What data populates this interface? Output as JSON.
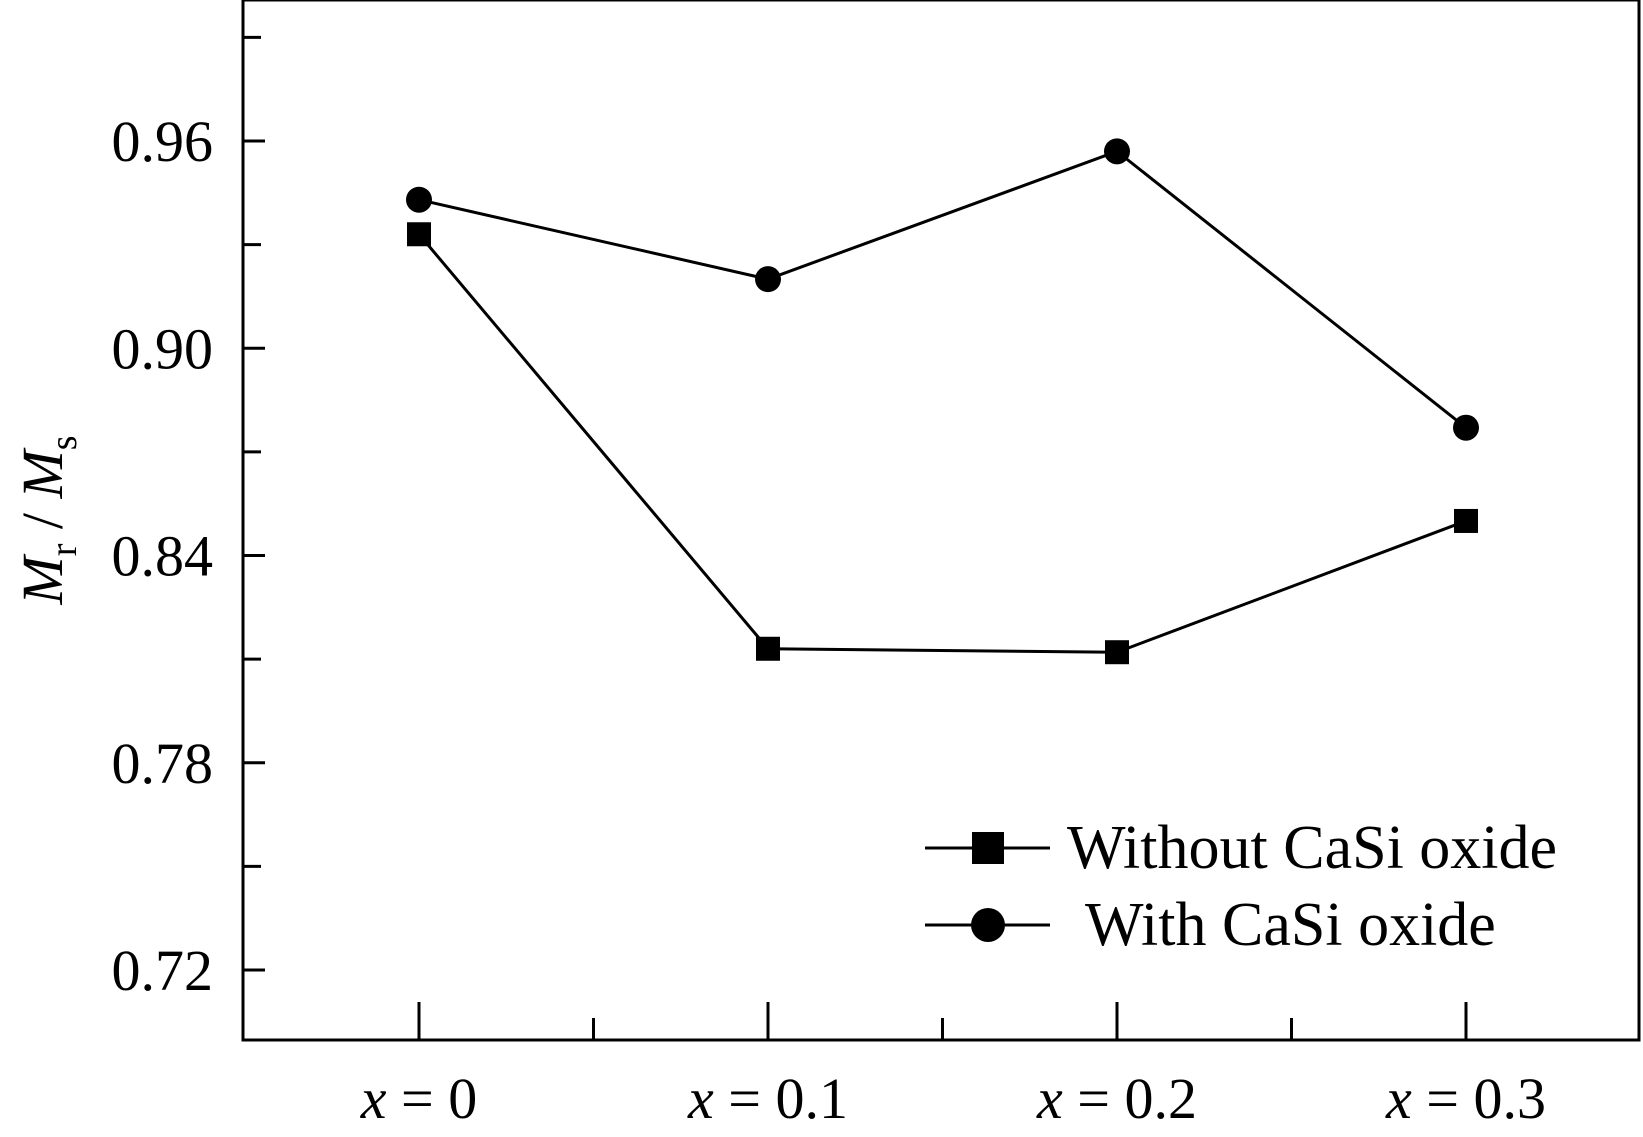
{
  "chart_data": {
    "type": "line",
    "categories": [
      "x = 0",
      "x = 0.1",
      "x = 0.2",
      "x = 0.3"
    ],
    "category_parts": [
      {
        "var": "x",
        "rest": " = 0"
      },
      {
        "var": "x",
        "rest": " = 0.1"
      },
      {
        "var": "x",
        "rest": " = 0.2"
      },
      {
        "var": "x",
        "rest": " = 0.3"
      }
    ],
    "series": [
      {
        "name": "Without CaSi oxide",
        "marker": "square",
        "values": [
          0.933,
          0.813,
          0.812,
          0.85
        ]
      },
      {
        "name": "With CaSi oxide",
        "marker": "circle",
        "values": [
          0.943,
          0.92,
          0.957,
          0.877
        ]
      }
    ],
    "ylabel": {
      "main1": "M",
      "sub1": "r",
      "sep": " / ",
      "main2": "M",
      "sub2": "s"
    },
    "ylim": [
      0.7,
      1.0
    ],
    "yticks": [
      "0.72",
      "0.78",
      "0.84",
      "0.90",
      "0.96"
    ],
    "legend_position": "bottom-right",
    "grid": false,
    "colors": {
      "line": "#000000",
      "marker": "#000000",
      "background": "#ffffff"
    }
  }
}
